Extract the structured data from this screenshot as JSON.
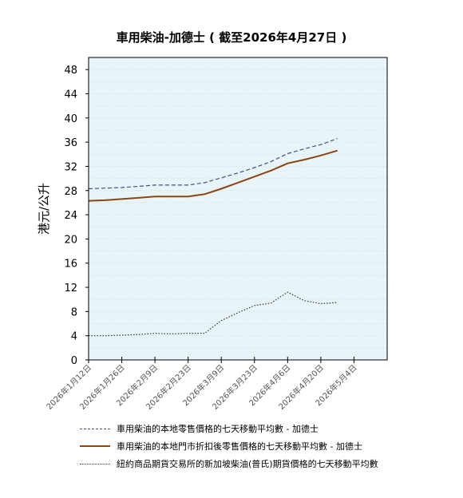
{
  "chart_data": {
    "type": "line",
    "title": "車用柴油-加德士 ( 截至2026年4月27日 )",
    "ylabel": "港元/公升",
    "xlabel": "",
    "ylim": [
      0,
      50
    ],
    "yticks": [
      0,
      4,
      8,
      12,
      16,
      20,
      24,
      28,
      32,
      36,
      40,
      44,
      48
    ],
    "xlim": [
      "2026-01-12",
      "2026-05-18"
    ],
    "xtick_labels": [
      "2026年1月12日",
      "2026年1月26日",
      "2026年2月9日",
      "2026年2月23日",
      "2026年3月9日",
      "2026年3月23日",
      "2026年4月6日",
      "2026年4月20日",
      "2026年5月4日"
    ],
    "grid": true,
    "background": "#e8f4f8",
    "legend_position": "bottom",
    "series": [
      {
        "name": "車用柴油的本地零售價格的七天移動平均數   - 加德士",
        "color": "#4a4a8a",
        "style": "dashed",
        "points": [
          [
            "2026-01-12",
            28.3
          ],
          [
            "2026-01-19",
            28.4
          ],
          [
            "2026-01-26",
            28.5
          ],
          [
            "2026-02-02",
            28.7
          ],
          [
            "2026-02-09",
            28.9
          ],
          [
            "2026-02-16",
            28.9
          ],
          [
            "2026-02-23",
            28.9
          ],
          [
            "2026-03-02",
            29.3
          ],
          [
            "2026-03-09",
            30.1
          ],
          [
            "2026-03-16",
            30.9
          ],
          [
            "2026-03-23",
            31.8
          ],
          [
            "2026-03-30",
            32.8
          ],
          [
            "2026-04-06",
            34.1
          ],
          [
            "2026-04-13",
            34.9
          ],
          [
            "2026-04-20",
            35.6
          ],
          [
            "2026-04-27",
            36.6
          ]
        ]
      },
      {
        "name": "車用柴油的本地門市折扣後零售價格的七天移動平均數   - 加德士",
        "color": "#8b4513",
        "style": "solid",
        "points": [
          [
            "2026-01-12",
            26.3
          ],
          [
            "2026-01-19",
            26.4
          ],
          [
            "2026-01-26",
            26.6
          ],
          [
            "2026-02-02",
            26.8
          ],
          [
            "2026-02-09",
            27.0
          ],
          [
            "2026-02-16",
            27.0
          ],
          [
            "2026-02-23",
            27.0
          ],
          [
            "2026-03-02",
            27.4
          ],
          [
            "2026-03-09",
            28.3
          ],
          [
            "2026-03-16",
            29.3
          ],
          [
            "2026-03-23",
            30.3
          ],
          [
            "2026-03-30",
            31.3
          ],
          [
            "2026-04-06",
            32.5
          ],
          [
            "2026-04-13",
            33.1
          ],
          [
            "2026-04-20",
            33.8
          ],
          [
            "2026-04-27",
            34.6
          ]
        ]
      },
      {
        "name": "紐約商品期貨交易所的新加坡柴油(普氏)期貨價格的七天移動平均數",
        "color": "#333333",
        "style": "dotted",
        "points": [
          [
            "2026-01-12",
            4.0
          ],
          [
            "2026-01-19",
            4.0
          ],
          [
            "2026-01-26",
            4.1
          ],
          [
            "2026-02-02",
            4.2
          ],
          [
            "2026-02-09",
            4.4
          ],
          [
            "2026-02-16",
            4.3
          ],
          [
            "2026-02-23",
            4.4
          ],
          [
            "2026-03-02",
            4.4
          ],
          [
            "2026-03-09",
            6.5
          ],
          [
            "2026-03-16",
            7.8
          ],
          [
            "2026-03-23",
            9.0
          ],
          [
            "2026-03-30",
            9.4
          ],
          [
            "2026-04-06",
            11.2
          ],
          [
            "2026-04-13",
            9.8
          ],
          [
            "2026-04-20",
            9.3
          ],
          [
            "2026-04-27",
            9.5
          ]
        ]
      }
    ]
  }
}
